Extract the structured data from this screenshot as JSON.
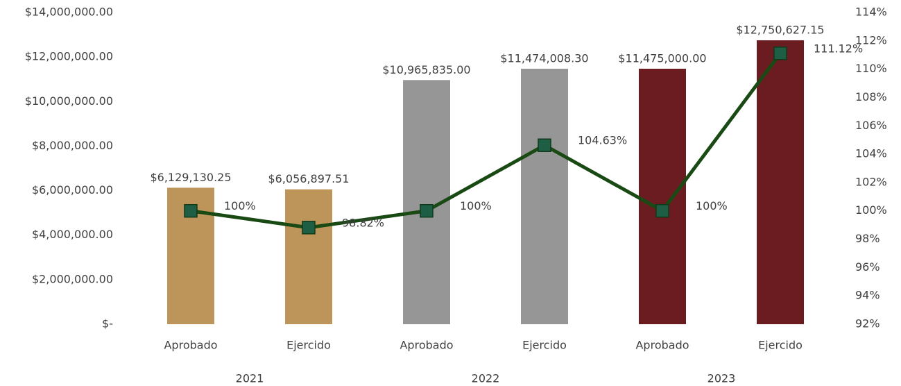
{
  "chart_data": {
    "type": "bar",
    "categories": [
      "Aprobado",
      "Ejercido",
      "Aprobado",
      "Ejercido",
      "Aprobado",
      "Ejercido"
    ],
    "x_groups": [
      "2021",
      "2022",
      "2023"
    ],
    "ylim": [
      0,
      14000000
    ],
    "yticks": [
      {
        "value": 0,
        "label": "$-"
      },
      {
        "value": 2000000,
        "label": "$2,000,000.00"
      },
      {
        "value": 4000000,
        "label": "$4,000,000.00"
      },
      {
        "value": 6000000,
        "label": "$6,000,000.00"
      },
      {
        "value": 8000000,
        "label": "$8,000,000.00"
      },
      {
        "value": 10000000,
        "label": "$10,000,000.00"
      },
      {
        "value": 12000000,
        "label": "$12,000,000.00"
      },
      {
        "value": 14000000,
        "label": "$14,000,000.00"
      }
    ],
    "y2lim": [
      92,
      114
    ],
    "y2ticks": [
      {
        "value": 92,
        "label": "92%"
      },
      {
        "value": 94,
        "label": "94%"
      },
      {
        "value": 96,
        "label": "96%"
      },
      {
        "value": 98,
        "label": "98%"
      },
      {
        "value": 100,
        "label": "100%"
      },
      {
        "value": 102,
        "label": "102%"
      },
      {
        "value": 104,
        "label": "104%"
      },
      {
        "value": 106,
        "label": "106%"
      },
      {
        "value": 108,
        "label": "108%"
      },
      {
        "value": 110,
        "label": "110%"
      },
      {
        "value": 112,
        "label": "112%"
      },
      {
        "value": 114,
        "label": "114%"
      }
    ],
    "series": [
      {
        "type": "bar",
        "colors": [
          "#bd955a",
          "#bd955a",
          "#969696",
          "#969696",
          "#6a1c21",
          "#6a1c21"
        ],
        "values": [
          6129130.25,
          6056897.51,
          10965835.0,
          11474008.3,
          11475000.0,
          12750627.15
        ],
        "value_labels": [
          "$6,129,130.25",
          "$6,056,897.51",
          "$10,965,835.00",
          "$11,474,008.30",
          "$11,475,000.00",
          "$12,750,627.15"
        ]
      },
      {
        "type": "line",
        "axis": "y2",
        "color": "#1a4a14",
        "marker_color": "#1d5e45",
        "values": [
          100,
          98.82,
          100,
          104.63,
          100,
          111.12
        ],
        "value_labels": [
          "100%",
          "98.82%",
          "100%",
          "104.63%",
          "100%",
          "111.12%"
        ]
      }
    ]
  }
}
